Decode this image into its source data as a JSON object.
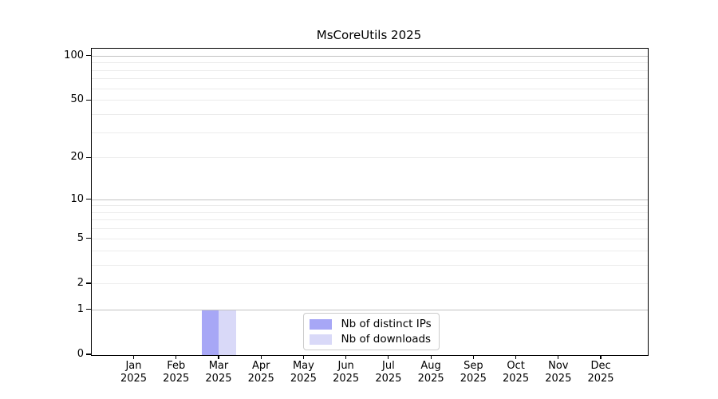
{
  "chart_data": {
    "type": "bar",
    "title": "MsCoreUtils 2025",
    "categories": [
      {
        "month": "Jan",
        "year": "2025"
      },
      {
        "month": "Feb",
        "year": "2025"
      },
      {
        "month": "Mar",
        "year": "2025"
      },
      {
        "month": "Apr",
        "year": "2025"
      },
      {
        "month": "May",
        "year": "2025"
      },
      {
        "month": "Jun",
        "year": "2025"
      },
      {
        "month": "Jul",
        "year": "2025"
      },
      {
        "month": "Aug",
        "year": "2025"
      },
      {
        "month": "Sep",
        "year": "2025"
      },
      {
        "month": "Oct",
        "year": "2025"
      },
      {
        "month": "Nov",
        "year": "2025"
      },
      {
        "month": "Dec",
        "year": "2025"
      }
    ],
    "series": [
      {
        "name": "Nb of distinct IPs",
        "color": "#a7a7f6",
        "values": [
          0,
          0,
          1,
          0,
          0,
          0,
          0,
          0,
          0,
          0,
          0,
          0
        ]
      },
      {
        "name": "Nb of downloads",
        "color": "#d9d9f8",
        "values": [
          0,
          0,
          1,
          0,
          0,
          0,
          0,
          0,
          0,
          0,
          0,
          0
        ]
      }
    ],
    "yscale": "log1p",
    "yticks": [
      0,
      1,
      2,
      5,
      10,
      20,
      50,
      100
    ],
    "ylim": [
      0,
      113
    ],
    "xlabel": "",
    "ylabel": "",
    "grid": {
      "orientation": "horizontal",
      "minor_color": "#ececec",
      "decade_color": "#c2c2c2",
      "decade_values": [
        1,
        10,
        100
      ],
      "minor_values": [
        2,
        3,
        4,
        5,
        6,
        7,
        8,
        9,
        20,
        30,
        40,
        50,
        60,
        70,
        80,
        90
      ]
    },
    "legend_position": "bottom-center",
    "background": "#ffffff"
  }
}
